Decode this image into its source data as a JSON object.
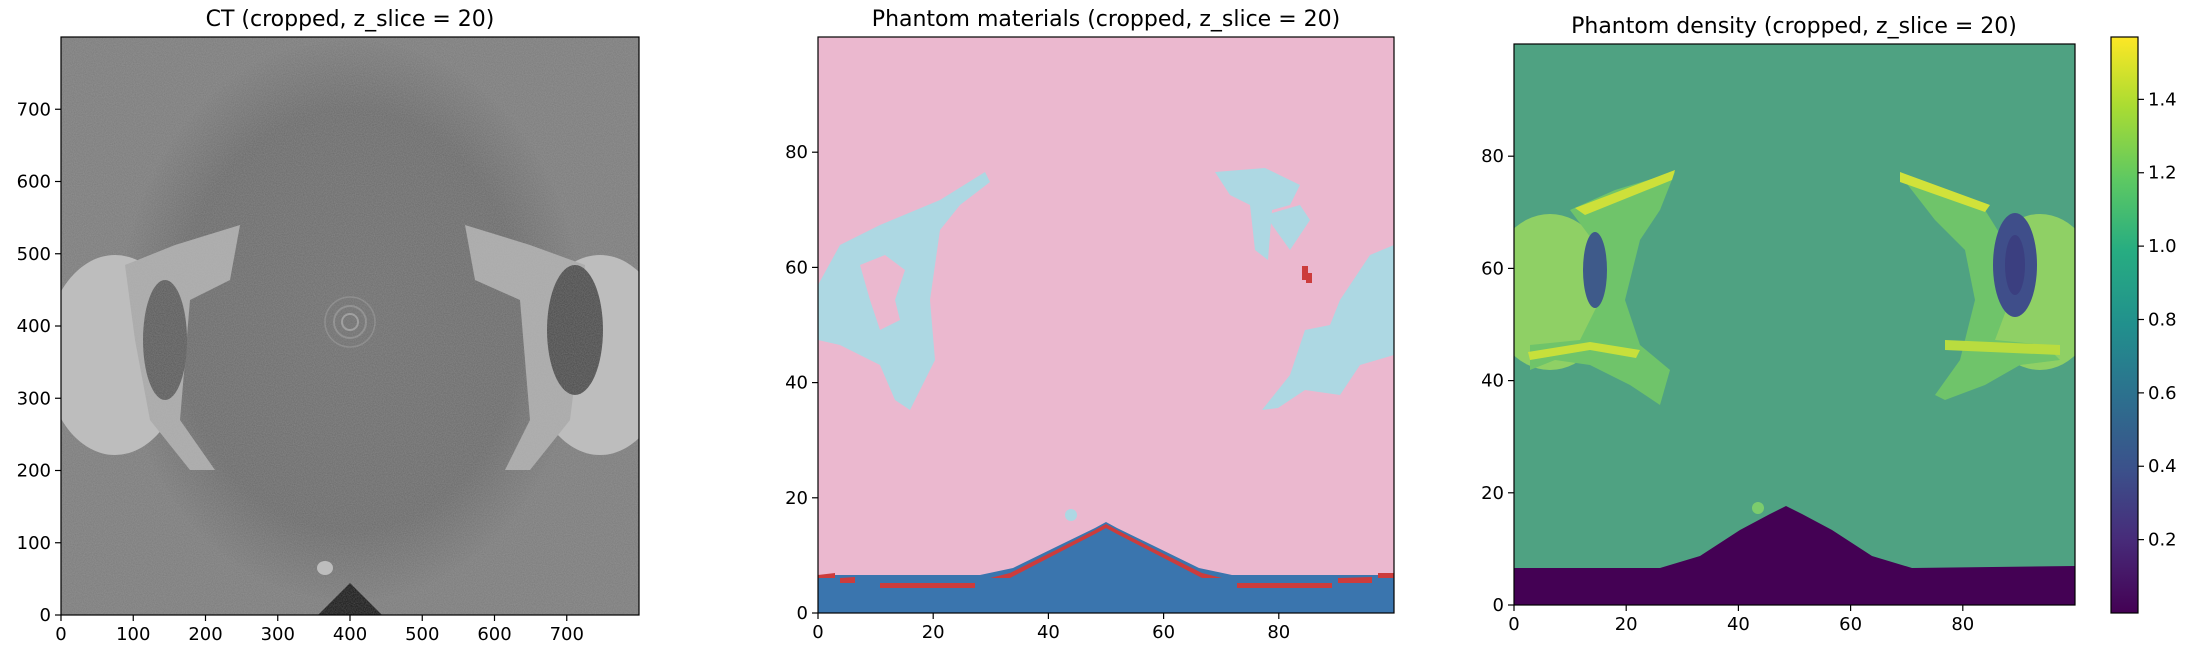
{
  "chart_data": [
    {
      "type": "heatmap",
      "title": "CT (cropped, z_slice = 20)",
      "xlim": [
        0,
        800
      ],
      "ylim": [
        0,
        800
      ],
      "xticks": [
        0,
        100,
        200,
        300,
        400,
        500,
        600,
        700
      ],
      "yticks": [
        0,
        100,
        200,
        300,
        400,
        500,
        600,
        700
      ],
      "colormap": "gray",
      "grid": false
    },
    {
      "type": "heatmap",
      "title": "Phantom materials (cropped, z_slice = 20)",
      "xlim": [
        0,
        100
      ],
      "ylim": [
        0,
        100
      ],
      "xticks": [
        0,
        20,
        40,
        60,
        80
      ],
      "yticks": [
        0,
        20,
        40,
        60,
        80
      ],
      "material_colors": [
        "#ebb8cf",
        "#add8e3",
        "#3a75ae",
        "#cc3c3c"
      ],
      "grid": false
    },
    {
      "type": "heatmap",
      "title": "Phantom density (cropped, z_slice = 20)",
      "xlim": [
        0,
        100
      ],
      "ylim": [
        0,
        100
      ],
      "xticks": [
        0,
        20,
        40,
        60,
        80
      ],
      "yticks": [
        0,
        20,
        40,
        60,
        80
      ],
      "colormap": "viridis",
      "colorbar": {
        "ticks": [
          0.2,
          0.4,
          0.6,
          0.8,
          1.0,
          1.2,
          1.4
        ],
        "tick_labels": [
          "0.2",
          "0.4",
          "0.6",
          "0.8",
          "1.0",
          "1.2",
          "1.4"
        ],
        "range": [
          0.0,
          1.57
        ]
      },
      "grid": false
    }
  ]
}
